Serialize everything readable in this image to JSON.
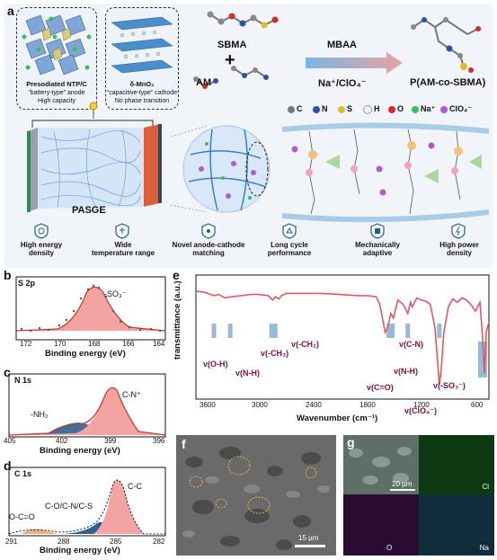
{
  "panel_a": {
    "letter": "a",
    "anode": {
      "title": "Presodiated NTP/C",
      "line1": "“battery-type” anode",
      "line2": "High capacity"
    },
    "cathode": {
      "title": "δ-MnO₂",
      "line1": "“capacitive-type” cathode",
      "line2": "No phase transition"
    },
    "chemistry": {
      "sbma": "SBMA",
      "am": "AM",
      "mbaa": "MBAA",
      "conditions": "Na⁺/ClO₄⁻",
      "plus": "+",
      "product": "P(AM-co-SBMA)"
    },
    "legend": [
      {
        "label": "C",
        "color": "#7a7a7a"
      },
      {
        "label": "N",
        "color": "#2f4fa8"
      },
      {
        "label": "S",
        "color": "#d8c12a"
      },
      {
        "label": "H",
        "color": "#f0f0f0"
      },
      {
        "label": "O",
        "color": "#d62b2b"
      },
      {
        "label": "Na⁺",
        "color": "#3bbf5c"
      },
      {
        "label": "ClO₄⁻",
        "color": "#b05ccf"
      }
    ],
    "device_label": "PASGE",
    "features": [
      {
        "l1": "High energy",
        "l2": "density"
      },
      {
        "l1": "Wide",
        "l2": "temperature  range"
      },
      {
        "l1": "Novel anode-cathode",
        "l2": "matching"
      },
      {
        "l1": "Long cycle",
        "l2": "performance"
      },
      {
        "l1": "Mechanically",
        "l2": "adaptive"
      },
      {
        "l1": "High power",
        "l2": "density"
      }
    ]
  },
  "panel_b": {
    "letter": "b",
    "element": "S 2p",
    "peak": "-SO₃⁻",
    "xlabel": "Binding energy (eV)",
    "ticks": [
      "172",
      "170",
      "168",
      "166",
      "164"
    ]
  },
  "panel_c": {
    "letter": "c",
    "element": "N 1s",
    "peak1": "-NH₂",
    "peak2": "C-N⁺",
    "xlabel": "Binding energy (eV)",
    "ticks": [
      "405",
      "402",
      "399",
      "396"
    ]
  },
  "panel_d": {
    "letter": "d",
    "element": "C 1s",
    "peak1": "O-C=O",
    "peak2": "C-O/C-N/C-S",
    "peak3": "C-C",
    "xlabel": "Binding energy (eV)",
    "ticks": [
      "291",
      "288",
      "285",
      "282"
    ]
  },
  "panel_e": {
    "letter": "e",
    "ylabel": "transmittance (a.u.)",
    "xlabel": "Wavenumber (cm⁻¹)",
    "ticks": [
      "3600",
      "3000",
      "2400",
      "1800",
      "1200",
      "600"
    ],
    "annotations": [
      "v(O-H)",
      "v(N-H)",
      "v(-CH₃)",
      "v(-CH₂)",
      "v(C=O)",
      "v(N-H)",
      "v(C-N)",
      "v(ClO₄⁻)",
      "v(-SO₃⁻)"
    ]
  },
  "chart_data": {
    "type": "line",
    "title": "",
    "xlabel": "Wavenumber (cm⁻¹)",
    "ylabel": "transmittance (a.u.)",
    "x_reversed": true,
    "xlim": [
      3800,
      550
    ],
    "series": [
      {
        "x": [
          3800,
          3700,
          3600,
          3550,
          3480,
          3400,
          3300,
          3200,
          3100,
          3000,
          2950,
          2920,
          2880,
          2850,
          2800,
          2600,
          2400,
          2200,
          2000,
          1900,
          1800,
          1760,
          1700,
          1670,
          1640,
          1610,
          1560,
          1500,
          1450,
          1420,
          1400,
          1350,
          1300,
          1250,
          1200,
          1150,
          1120,
          1100,
          1080,
          1050,
          1000,
          950,
          900,
          850,
          800,
          750,
          700,
          650,
          620,
          600,
          580,
          560
        ],
        "y": [
          0.92,
          0.91,
          0.88,
          0.89,
          0.86,
          0.87,
          0.88,
          0.89,
          0.89,
          0.88,
          0.84,
          0.87,
          0.85,
          0.88,
          0.9,
          0.9,
          0.9,
          0.89,
          0.88,
          0.88,
          0.87,
          0.8,
          0.55,
          0.6,
          0.72,
          0.68,
          0.84,
          0.8,
          0.72,
          0.82,
          0.78,
          0.86,
          0.84,
          0.83,
          0.8,
          0.6,
          0.3,
          0.08,
          0.2,
          0.55,
          0.78,
          0.85,
          0.82,
          0.86,
          0.84,
          0.8,
          0.74,
          0.82,
          0.5,
          0.18,
          0.55,
          0.62
        ]
      }
    ]
  },
  "panel_f": {
    "letter": "f",
    "scale": "15 µm"
  },
  "panel_g": {
    "letter": "g",
    "scale": "20 µm",
    "labels": [
      "Cl",
      "O",
      "Na"
    ]
  }
}
